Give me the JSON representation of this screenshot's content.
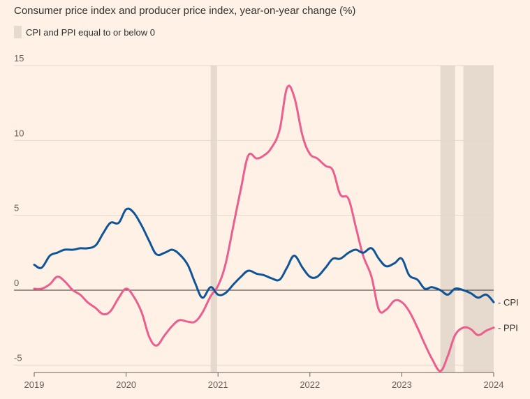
{
  "chart_data": {
    "type": "line",
    "title": "Consumer price index and producer price index, year-on-year change (%)",
    "shading_legend": "CPI and PPI equal to or below 0",
    "xlim": [
      2019.0,
      2024.0
    ],
    "ylim": [
      -5.5,
      15
    ],
    "x_ticks": [
      2019,
      2020,
      2021,
      2022,
      2023,
      2024
    ],
    "x_tick_labels": [
      "2019",
      "2020",
      "2021",
      "2022",
      "2023",
      "2024"
    ],
    "y_ticks": [
      15,
      10,
      5,
      0,
      -5
    ],
    "y_tick_labels": [
      "15",
      "10",
      "5",
      "0",
      "-5"
    ],
    "shaded_ranges": [
      [
        2020.92,
        2020.99
      ],
      [
        2023.42,
        2023.58
      ],
      [
        2023.67,
        2024.0
      ]
    ],
    "colors": {
      "cpi": "#0f5499",
      "ppi": "#eb5e8d",
      "shade": "#e6d9ce",
      "zero": "#33302e",
      "grid": "#e3d6ca"
    },
    "series": [
      {
        "name": "CPI",
        "key": "cpi",
        "points": [
          [
            2019.0,
            1.7
          ],
          [
            2019.08,
            1.5
          ],
          [
            2019.17,
            2.3
          ],
          [
            2019.25,
            2.5
          ],
          [
            2019.33,
            2.7
          ],
          [
            2019.42,
            2.7
          ],
          [
            2019.5,
            2.8
          ],
          [
            2019.58,
            2.8
          ],
          [
            2019.67,
            3.0
          ],
          [
            2019.75,
            3.8
          ],
          [
            2019.83,
            4.5
          ],
          [
            2019.92,
            4.5
          ],
          [
            2020.0,
            5.4
          ],
          [
            2020.08,
            5.2
          ],
          [
            2020.17,
            4.3
          ],
          [
            2020.25,
            3.3
          ],
          [
            2020.33,
            2.4
          ],
          [
            2020.42,
            2.5
          ],
          [
            2020.5,
            2.7
          ],
          [
            2020.58,
            2.4
          ],
          [
            2020.67,
            1.7
          ],
          [
            2020.75,
            0.5
          ],
          [
            2020.83,
            -0.5
          ],
          [
            2020.92,
            0.2
          ],
          [
            2021.0,
            -0.3
          ],
          [
            2021.08,
            -0.2
          ],
          [
            2021.17,
            0.4
          ],
          [
            2021.25,
            0.9
          ],
          [
            2021.33,
            1.3
          ],
          [
            2021.42,
            1.1
          ],
          [
            2021.5,
            1.0
          ],
          [
            2021.58,
            0.8
          ],
          [
            2021.67,
            0.7
          ],
          [
            2021.75,
            1.5
          ],
          [
            2021.83,
            2.3
          ],
          [
            2021.92,
            1.5
          ],
          [
            2022.0,
            0.9
          ],
          [
            2022.08,
            0.9
          ],
          [
            2022.17,
            1.5
          ],
          [
            2022.25,
            2.1
          ],
          [
            2022.33,
            2.1
          ],
          [
            2022.42,
            2.5
          ],
          [
            2022.5,
            2.7
          ],
          [
            2022.58,
            2.5
          ],
          [
            2022.67,
            2.8
          ],
          [
            2022.75,
            2.1
          ],
          [
            2022.83,
            1.6
          ],
          [
            2022.92,
            1.8
          ],
          [
            2023.0,
            2.1
          ],
          [
            2023.08,
            1.0
          ],
          [
            2023.17,
            0.7
          ],
          [
            2023.25,
            0.1
          ],
          [
            2023.33,
            0.2
          ],
          [
            2023.42,
            0.0
          ],
          [
            2023.5,
            -0.3
          ],
          [
            2023.58,
            0.1
          ],
          [
            2023.67,
            0.0
          ],
          [
            2023.75,
            -0.2
          ],
          [
            2023.83,
            -0.5
          ],
          [
            2023.92,
            -0.3
          ],
          [
            2024.0,
            -0.8
          ]
        ]
      },
      {
        "name": "PPI",
        "key": "ppi",
        "points": [
          [
            2019.0,
            0.1
          ],
          [
            2019.08,
            0.1
          ],
          [
            2019.17,
            0.4
          ],
          [
            2019.25,
            0.9
          ],
          [
            2019.33,
            0.6
          ],
          [
            2019.42,
            0.0
          ],
          [
            2019.5,
            -0.3
          ],
          [
            2019.58,
            -0.8
          ],
          [
            2019.67,
            -1.2
          ],
          [
            2019.75,
            -1.6
          ],
          [
            2019.83,
            -1.4
          ],
          [
            2019.92,
            -0.5
          ],
          [
            2020.0,
            0.1
          ],
          [
            2020.08,
            -0.4
          ],
          [
            2020.17,
            -1.5
          ],
          [
            2020.25,
            -3.1
          ],
          [
            2020.33,
            -3.7
          ],
          [
            2020.42,
            -3.0
          ],
          [
            2020.5,
            -2.4
          ],
          [
            2020.58,
            -2.0
          ],
          [
            2020.67,
            -2.1
          ],
          [
            2020.75,
            -2.1
          ],
          [
            2020.83,
            -1.5
          ],
          [
            2020.92,
            -0.4
          ],
          [
            2021.0,
            0.3
          ],
          [
            2021.08,
            1.7
          ],
          [
            2021.17,
            4.4
          ],
          [
            2021.25,
            6.8
          ],
          [
            2021.33,
            9.0
          ],
          [
            2021.42,
            8.8
          ],
          [
            2021.5,
            9.0
          ],
          [
            2021.58,
            9.5
          ],
          [
            2021.67,
            10.7
          ],
          [
            2021.75,
            13.5
          ],
          [
            2021.83,
            12.9
          ],
          [
            2021.92,
            10.3
          ],
          [
            2022.0,
            9.1
          ],
          [
            2022.08,
            8.8
          ],
          [
            2022.17,
            8.3
          ],
          [
            2022.25,
            8.0
          ],
          [
            2022.33,
            6.4
          ],
          [
            2022.42,
            6.1
          ],
          [
            2022.5,
            4.2
          ],
          [
            2022.58,
            2.3
          ],
          [
            2022.67,
            0.9
          ],
          [
            2022.75,
            -1.3
          ],
          [
            2022.83,
            -1.3
          ],
          [
            2022.92,
            -0.7
          ],
          [
            2023.0,
            -0.8
          ],
          [
            2023.08,
            -1.4
          ],
          [
            2023.17,
            -2.5
          ],
          [
            2023.25,
            -3.6
          ],
          [
            2023.33,
            -4.6
          ],
          [
            2023.42,
            -5.4
          ],
          [
            2023.5,
            -4.4
          ],
          [
            2023.58,
            -3.0
          ],
          [
            2023.67,
            -2.5
          ],
          [
            2023.75,
            -2.6
          ],
          [
            2023.83,
            -3.0
          ],
          [
            2023.92,
            -2.7
          ],
          [
            2024.0,
            -2.5
          ]
        ]
      }
    ]
  }
}
